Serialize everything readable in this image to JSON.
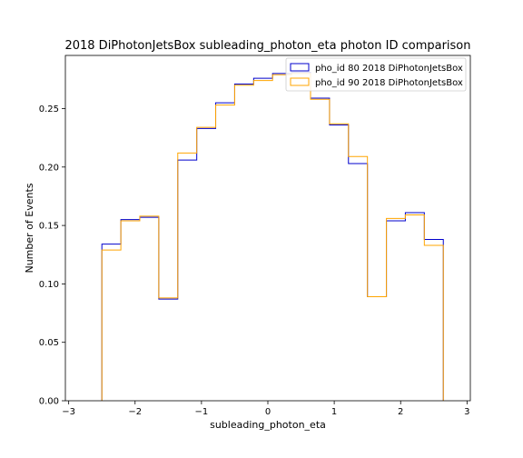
{
  "chart_data": {
    "type": "histogram-step",
    "title": "2018 DiPhotonJetsBox subleading_photon_eta photon ID comparison",
    "xlabel": "subleading_photon_eta",
    "ylabel": "Number of Events",
    "xlim": [
      -3.05,
      3.05
    ],
    "ylim": [
      0.0,
      0.2955
    ],
    "xticks": [
      -3,
      -2,
      -1,
      0,
      1,
      2,
      3
    ],
    "xtick_labels": [
      "−3",
      "−2",
      "−1",
      "0",
      "1",
      "2",
      "3"
    ],
    "yticks": [
      0.0,
      0.05,
      0.1,
      0.15,
      0.2,
      0.25
    ],
    "ytick_labels": [
      "0.00",
      "0.05",
      "0.10",
      "0.15",
      "0.20",
      "0.25"
    ],
    "grid": false,
    "legend_position": "top-right",
    "bin_edges": [
      -2.5,
      -2.214,
      -1.929,
      -1.643,
      -1.357,
      -1.071,
      -0.786,
      -0.5,
      -0.214,
      0.071,
      0.357,
      0.643,
      0.929,
      1.214,
      1.5,
      1.786,
      2.071,
      2.357,
      2.643
    ],
    "series": [
      {
        "name": "pho_id 80 2018 DiPhotonJetsBox",
        "color": "#0000cc",
        "values": [
          0.134,
          0.155,
          0.157,
          0.087,
          0.206,
          0.233,
          0.255,
          0.271,
          0.276,
          0.28,
          0.281,
          0.259,
          0.236,
          0.203,
          0.089,
          0.154,
          0.161,
          0.138
        ]
      },
      {
        "name": "pho_id 90 2018 DiPhotonJetsBox",
        "color": "#ffa500",
        "values": [
          0.129,
          0.154,
          0.158,
          0.088,
          0.212,
          0.234,
          0.253,
          0.27,
          0.274,
          0.279,
          0.28,
          0.258,
          0.237,
          0.209,
          0.089,
          0.156,
          0.159,
          0.133
        ]
      }
    ]
  }
}
